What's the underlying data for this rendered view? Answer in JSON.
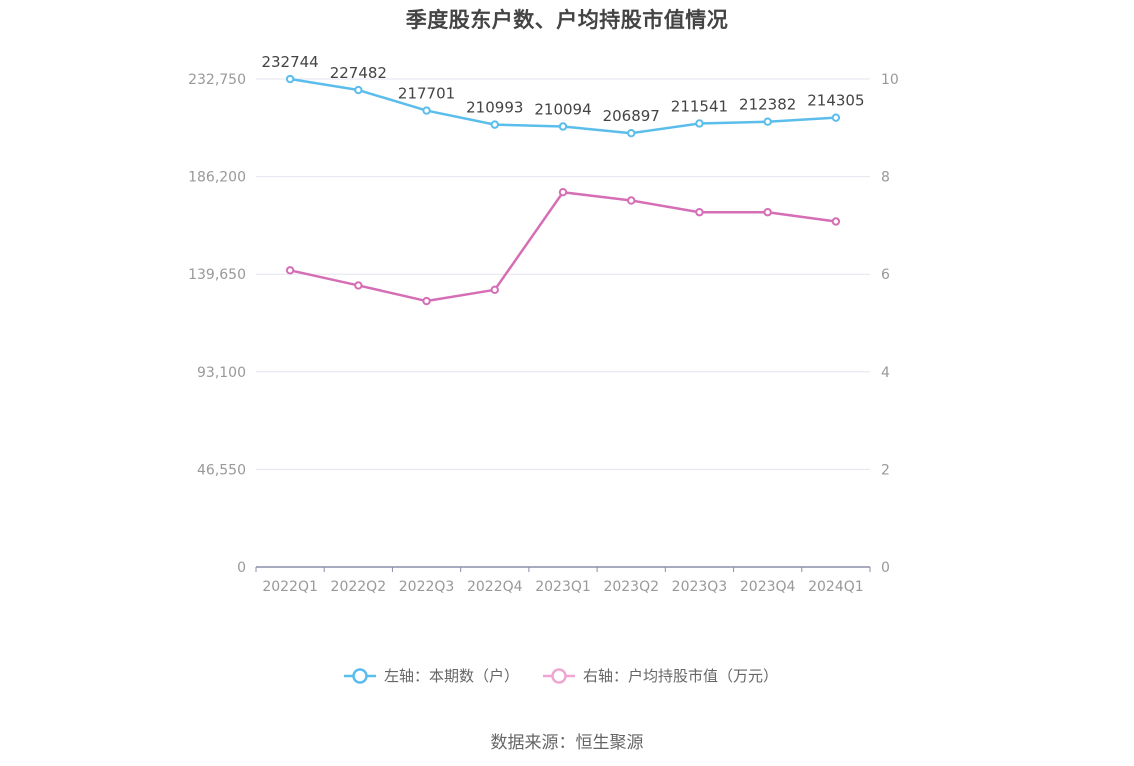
{
  "title": "季度股东户数、户均持股市值情况",
  "source": "数据来源：恒生聚源",
  "colors": {
    "left_series": "#5bbdec",
    "right_series": "#d56eb5",
    "right_legend": "#f0a6d2",
    "grid": "#e3e5ef",
    "axis": "#8b8fa8"
  },
  "chart_data": {
    "type": "line",
    "categories": [
      "2022Q1",
      "2022Q2",
      "2022Q3",
      "2022Q4",
      "2023Q1",
      "2023Q2",
      "2023Q3",
      "2023Q4",
      "2024Q1"
    ],
    "series": [
      {
        "name": "左轴：本期数（户）",
        "axis": "left",
        "values": [
          232744,
          227482,
          217701,
          210993,
          210094,
          206897,
          211541,
          212382,
          214305
        ],
        "show_labels": true
      },
      {
        "name": "右轴：户均持股市值（万元）",
        "axis": "right",
        "values": [
          6.08,
          5.77,
          5.45,
          5.68,
          7.68,
          7.51,
          7.27,
          7.27,
          7.08
        ],
        "show_labels": false
      }
    ],
    "left_axis": {
      "min": 0,
      "max": 232750,
      "ticks": [
        0,
        46550,
        93100,
        139650,
        186200,
        232750
      ],
      "tick_labels": [
        "0",
        "46,550",
        "93,100",
        "139,650",
        "186,200",
        "232,750"
      ]
    },
    "right_axis": {
      "min": 0,
      "max": 10,
      "ticks": [
        0,
        2,
        4,
        6,
        8,
        10
      ],
      "tick_labels": [
        "0",
        "2",
        "4",
        "6",
        "8",
        "10"
      ]
    },
    "grid": true,
    "legend_position": "bottom"
  }
}
